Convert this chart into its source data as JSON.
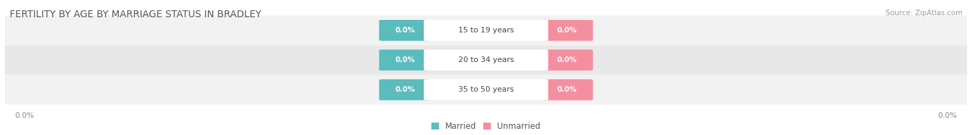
{
  "title": "FERTILITY BY AGE BY MARRIAGE STATUS IN BRADLEY",
  "source_text": "Source: ZipAtlas.com",
  "age_groups": [
    "15 to 19 years",
    "20 to 34 years",
    "35 to 50 years"
  ],
  "married_values": [
    0.0,
    0.0,
    0.0
  ],
  "unmarried_values": [
    0.0,
    0.0,
    0.0
  ],
  "married_color": "#5bbcbd",
  "unmarried_color": "#f48fa0",
  "row_bg_light": "#f2f2f2",
  "row_bg_dark": "#e8e8e8",
  "title_fontsize": 10,
  "source_fontsize": 7.5,
  "label_fontsize": 8,
  "value_fontsize": 7.5,
  "legend_fontsize": 8.5,
  "left_label": "0.0%",
  "right_label": "0.0%",
  "background_color": "#ffffff"
}
